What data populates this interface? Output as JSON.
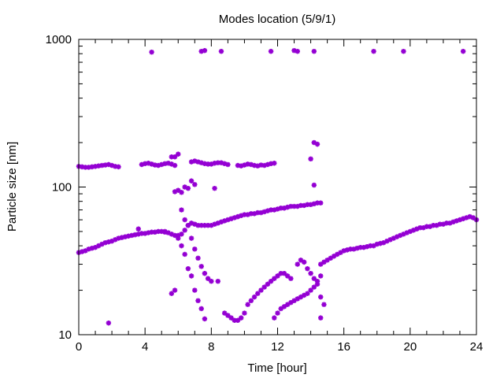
{
  "chart_data": {
    "type": "scatter",
    "title": "Modes location (5/9/1)",
    "xlabel": "Time [hour]",
    "ylabel": "Particle size [nm]",
    "xlim": [
      0,
      24
    ],
    "ylim": [
      10,
      1000
    ],
    "y_scale": "log",
    "grid": false,
    "legend": "none",
    "marker": "asterisk",
    "color": "#9400d3",
    "x_ticks": [
      {
        "value": 0,
        "label": "0"
      },
      {
        "value": 4,
        "label": "4"
      },
      {
        "value": 8,
        "label": "8"
      },
      {
        "value": 12,
        "label": "12"
      },
      {
        "value": 16,
        "label": "16"
      },
      {
        "value": 20,
        "label": "20"
      },
      {
        "value": 24,
        "label": "24"
      }
    ],
    "y_ticks": [
      {
        "value": 10,
        "label": "10"
      },
      {
        "value": 100,
        "label": "100"
      },
      {
        "value": 1000,
        "label": "1000"
      }
    ],
    "series": [
      {
        "values": [
          [
            0.0,
            36
          ],
          [
            0.2,
            36.5
          ],
          [
            0.4,
            37
          ],
          [
            0.6,
            38
          ],
          [
            0.8,
            38.5
          ],
          [
            1.0,
            39
          ],
          [
            1.2,
            40
          ],
          [
            1.4,
            41
          ],
          [
            1.6,
            42
          ],
          [
            1.8,
            42.5
          ],
          [
            2.0,
            43
          ],
          [
            2.2,
            44
          ],
          [
            2.4,
            45
          ],
          [
            2.6,
            45.5
          ],
          [
            2.8,
            46
          ],
          [
            3.0,
            46.5
          ],
          [
            3.2,
            47
          ],
          [
            3.4,
            47.5
          ],
          [
            3.6,
            48
          ],
          [
            3.8,
            48.5
          ],
          [
            4.0,
            48.5
          ],
          [
            4.2,
            49
          ],
          [
            4.4,
            49.5
          ],
          [
            4.6,
            49.5
          ],
          [
            4.8,
            50
          ],
          [
            5.0,
            50
          ],
          [
            5.2,
            49.5
          ],
          [
            5.4,
            49
          ],
          [
            5.6,
            48
          ],
          [
            5.8,
            47
          ],
          [
            6.0,
            47
          ],
          [
            6.2,
            48
          ],
          [
            6.4,
            51
          ],
          [
            6.6,
            55
          ],
          [
            6.8,
            57
          ],
          [
            7.0,
            56
          ],
          [
            7.2,
            55
          ],
          [
            7.4,
            55
          ],
          [
            7.6,
            55
          ],
          [
            7.8,
            55
          ],
          [
            8.0,
            55
          ],
          [
            8.2,
            56
          ],
          [
            8.4,
            57
          ],
          [
            8.6,
            58
          ],
          [
            8.8,
            59
          ],
          [
            9.0,
            60
          ],
          [
            9.2,
            61
          ],
          [
            9.4,
            62
          ],
          [
            9.6,
            63
          ],
          [
            9.8,
            64
          ],
          [
            10.0,
            65
          ],
          [
            10.2,
            65
          ],
          [
            10.4,
            66
          ],
          [
            10.6,
            66
          ],
          [
            10.8,
            67
          ],
          [
            11.0,
            67
          ],
          [
            11.2,
            68
          ],
          [
            11.4,
            69
          ],
          [
            11.6,
            70
          ],
          [
            11.8,
            70
          ],
          [
            12.0,
            71
          ],
          [
            12.2,
            72
          ],
          [
            12.4,
            72
          ],
          [
            12.6,
            73
          ],
          [
            12.8,
            74
          ],
          [
            13.0,
            74
          ],
          [
            13.2,
            74
          ],
          [
            13.4,
            75
          ],
          [
            13.6,
            75
          ],
          [
            13.8,
            76
          ],
          [
            14.0,
            76
          ],
          [
            14.2,
            77
          ],
          [
            14.4,
            78
          ],
          [
            14.6,
            78
          ],
          [
            14.6,
            30
          ],
          [
            14.8,
            31
          ],
          [
            15.0,
            32
          ],
          [
            15.2,
            33
          ],
          [
            15.4,
            34
          ],
          [
            15.6,
            35
          ],
          [
            15.8,
            36
          ],
          [
            16.0,
            37
          ],
          [
            16.2,
            37.5
          ],
          [
            16.4,
            38
          ],
          [
            16.6,
            38
          ],
          [
            16.8,
            38.5
          ],
          [
            17.0,
            39
          ],
          [
            17.2,
            39
          ],
          [
            17.4,
            39.5
          ],
          [
            17.6,
            40
          ],
          [
            17.8,
            40
          ],
          [
            18.0,
            41
          ],
          [
            18.2,
            41.5
          ],
          [
            18.4,
            42
          ],
          [
            18.6,
            43
          ],
          [
            18.8,
            44
          ],
          [
            19.0,
            45
          ],
          [
            19.2,
            46
          ],
          [
            19.4,
            47
          ],
          [
            19.6,
            48
          ],
          [
            19.8,
            49
          ],
          [
            20.0,
            50
          ],
          [
            20.2,
            51
          ],
          [
            20.4,
            52
          ],
          [
            20.6,
            53
          ],
          [
            20.8,
            53
          ],
          [
            21.0,
            54
          ],
          [
            21.2,
            54
          ],
          [
            21.4,
            55
          ],
          [
            21.6,
            55
          ],
          [
            21.8,
            56
          ],
          [
            22.0,
            56
          ],
          [
            22.2,
            57
          ],
          [
            22.4,
            57
          ],
          [
            22.6,
            58
          ],
          [
            22.8,
            59
          ],
          [
            23.0,
            60
          ],
          [
            23.2,
            61
          ],
          [
            23.4,
            62
          ],
          [
            23.6,
            63
          ],
          [
            23.8,
            62
          ],
          [
            24.0,
            60
          ],
          [
            0.0,
            138
          ],
          [
            0.2,
            137
          ],
          [
            0.4,
            136
          ],
          [
            0.6,
            136
          ],
          [
            0.8,
            137
          ],
          [
            1.0,
            138
          ],
          [
            1.2,
            139
          ],
          [
            1.4,
            140
          ],
          [
            1.6,
            141
          ],
          [
            1.8,
            142
          ],
          [
            2.0,
            140
          ],
          [
            2.2,
            138
          ],
          [
            2.4,
            137
          ],
          [
            3.8,
            142
          ],
          [
            4.0,
            144
          ],
          [
            4.2,
            145
          ],
          [
            4.4,
            143
          ],
          [
            4.6,
            141
          ],
          [
            4.8,
            140
          ],
          [
            5.0,
            142
          ],
          [
            5.2,
            144
          ],
          [
            5.4,
            145
          ],
          [
            5.6,
            143
          ],
          [
            5.8,
            140
          ],
          [
            6.8,
            148
          ],
          [
            7.0,
            150
          ],
          [
            7.2,
            148
          ],
          [
            7.4,
            146
          ],
          [
            7.6,
            144
          ],
          [
            7.8,
            143
          ],
          [
            8.0,
            143
          ],
          [
            8.2,
            145
          ],
          [
            8.4,
            146
          ],
          [
            8.6,
            146
          ],
          [
            8.8,
            144
          ],
          [
            9.0,
            142
          ],
          [
            9.6,
            140
          ],
          [
            9.8,
            139
          ],
          [
            10.0,
            141
          ],
          [
            10.2,
            143
          ],
          [
            10.4,
            142
          ],
          [
            10.6,
            140
          ],
          [
            10.8,
            139
          ],
          [
            11.0,
            141
          ],
          [
            11.2,
            140
          ],
          [
            11.4,
            142
          ],
          [
            11.6,
            144
          ],
          [
            11.8,
            145
          ],
          [
            6.0,
            167
          ],
          [
            5.6,
            160
          ],
          [
            5.8,
            160
          ],
          [
            14.2,
            200
          ],
          [
            14.4,
            195
          ],
          [
            14.0,
            155
          ],
          [
            14.2,
            103
          ],
          [
            5.8,
            93
          ],
          [
            6.0,
            95
          ],
          [
            6.2,
            92
          ],
          [
            6.4,
            100
          ],
          [
            6.6,
            98
          ],
          [
            6.8,
            110
          ],
          [
            7.0,
            104
          ],
          [
            8.2,
            98
          ],
          [
            6.2,
            70
          ],
          [
            6.4,
            60
          ],
          [
            6.6,
            55
          ],
          [
            6.8,
            45
          ],
          [
            7.0,
            38
          ],
          [
            7.2,
            33
          ],
          [
            7.4,
            29
          ],
          [
            7.6,
            26
          ],
          [
            7.8,
            24
          ],
          [
            8.0,
            23
          ],
          [
            5.6,
            19
          ],
          [
            5.8,
            20
          ],
          [
            6.0,
            45
          ],
          [
            6.2,
            40
          ],
          [
            6.4,
            35
          ],
          [
            6.6,
            28
          ],
          [
            6.8,
            25
          ],
          [
            7.0,
            20
          ],
          [
            7.2,
            17
          ],
          [
            7.4,
            15
          ],
          [
            7.6,
            12.8
          ],
          [
            8.4,
            23
          ],
          [
            8.8,
            14
          ],
          [
            9.0,
            13.5
          ],
          [
            9.2,
            13
          ],
          [
            9.4,
            12.5
          ],
          [
            9.6,
            12.5
          ],
          [
            9.8,
            13
          ],
          [
            10.0,
            14
          ],
          [
            10.2,
            16
          ],
          [
            10.4,
            17
          ],
          [
            10.6,
            18
          ],
          [
            10.8,
            19
          ],
          [
            11.0,
            20
          ],
          [
            11.2,
            21
          ],
          [
            11.4,
            22
          ],
          [
            11.6,
            23
          ],
          [
            11.8,
            24
          ],
          [
            12.0,
            25
          ],
          [
            12.2,
            26
          ],
          [
            12.4,
            26
          ],
          [
            12.6,
            25
          ],
          [
            12.8,
            24
          ],
          [
            11.8,
            13
          ],
          [
            12.0,
            14
          ],
          [
            12.2,
            15
          ],
          [
            12.4,
            15.5
          ],
          [
            12.6,
            16
          ],
          [
            12.8,
            16.5
          ],
          [
            13.0,
            17
          ],
          [
            13.2,
            17.5
          ],
          [
            13.4,
            18
          ],
          [
            13.6,
            18.5
          ],
          [
            13.8,
            19
          ],
          [
            14.0,
            20
          ],
          [
            14.2,
            21
          ],
          [
            14.4,
            23
          ],
          [
            14.6,
            25
          ],
          [
            13.2,
            30
          ],
          [
            13.4,
            32
          ],
          [
            13.6,
            31
          ],
          [
            13.8,
            28
          ],
          [
            14.0,
            26
          ],
          [
            14.2,
            24
          ],
          [
            14.4,
            22
          ],
          [
            14.6,
            18
          ],
          [
            14.8,
            16
          ],
          [
            14.6,
            13
          ],
          [
            1.8,
            12
          ],
          [
            3.6,
            52
          ],
          [
            5.2,
            50
          ],
          [
            4.4,
            820
          ],
          [
            7.4,
            830
          ],
          [
            7.6,
            840
          ],
          [
            8.6,
            830
          ],
          [
            11.6,
            830
          ],
          [
            13.0,
            840
          ],
          [
            13.2,
            830
          ],
          [
            14.2,
            830
          ],
          [
            17.8,
            830
          ],
          [
            19.6,
            830
          ],
          [
            23.2,
            830
          ]
        ]
      }
    ]
  }
}
